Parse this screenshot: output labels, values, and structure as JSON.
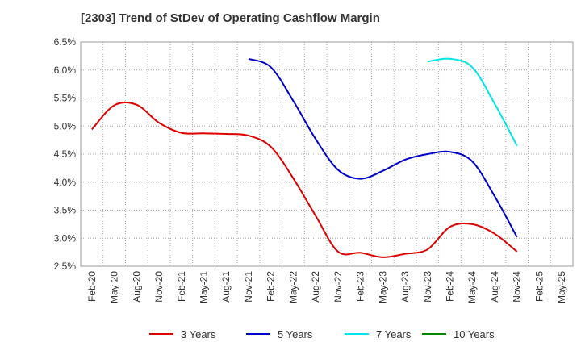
{
  "chart_data": {
    "type": "line",
    "title": "[2303]  Trend of StDev of Operating Cashflow Margin",
    "xlabel": "",
    "ylabel": "",
    "x": [
      "Feb-20",
      "May-20",
      "Aug-20",
      "Nov-20",
      "Feb-21",
      "May-21",
      "Aug-21",
      "Nov-21",
      "Feb-22",
      "May-22",
      "Aug-22",
      "Nov-22",
      "Feb-23",
      "May-23",
      "Aug-23",
      "Nov-23",
      "Feb-24",
      "May-24",
      "Aug-24",
      "Nov-24",
      "Feb-25",
      "May-25"
    ],
    "x_tick_labels": [
      "Feb-20",
      "May-20",
      "Aug-20",
      "Nov-20",
      "Feb-21",
      "May-21",
      "Aug-21",
      "Nov-21",
      "Feb-22",
      "May-22",
      "Aug-22",
      "Nov-22",
      "Feb-23",
      "May-23",
      "Aug-23",
      "Nov-23",
      "Feb-24",
      "May-24",
      "Aug-24",
      "Nov-24",
      "Feb-25",
      "May-25"
    ],
    "y_tick_labels": [
      "2.5%",
      "3.0%",
      "3.5%",
      "4.0%",
      "4.5%",
      "5.0%",
      "5.5%",
      "6.0%",
      "6.5%"
    ],
    "y_ticks": [
      2.5,
      3.0,
      3.5,
      4.0,
      4.5,
      5.0,
      5.5,
      6.0,
      6.5
    ],
    "ylim": [
      2.5,
      6.5
    ],
    "grid": true,
    "legend_position": "bottom",
    "series": [
      {
        "name": "3 Years",
        "color": "#dd0000",
        "values": [
          4.94,
          5.37,
          5.38,
          5.06,
          4.88,
          4.87,
          4.86,
          4.83,
          4.63,
          4.07,
          3.4,
          2.76,
          2.74,
          2.66,
          2.72,
          2.8,
          3.2,
          3.25,
          3.08,
          2.76,
          null,
          null
        ]
      },
      {
        "name": "5 Years",
        "color": "#0000cc",
        "values": [
          null,
          null,
          null,
          null,
          null,
          null,
          null,
          6.2,
          6.05,
          5.45,
          4.77,
          4.22,
          4.06,
          4.2,
          4.4,
          4.5,
          4.54,
          4.37,
          3.75,
          3.02,
          null,
          null
        ]
      },
      {
        "name": "7 Years",
        "color": "#00e5e5",
        "values": [
          null,
          null,
          null,
          null,
          null,
          null,
          null,
          null,
          null,
          null,
          null,
          null,
          null,
          null,
          null,
          6.15,
          6.2,
          6.05,
          5.4,
          4.65,
          null,
          null
        ]
      },
      {
        "name": "10 Years",
        "color": "#008800",
        "values": [
          null,
          null,
          null,
          null,
          null,
          null,
          null,
          null,
          null,
          null,
          null,
          null,
          null,
          null,
          null,
          null,
          null,
          null,
          null,
          null,
          null,
          null
        ]
      }
    ]
  }
}
